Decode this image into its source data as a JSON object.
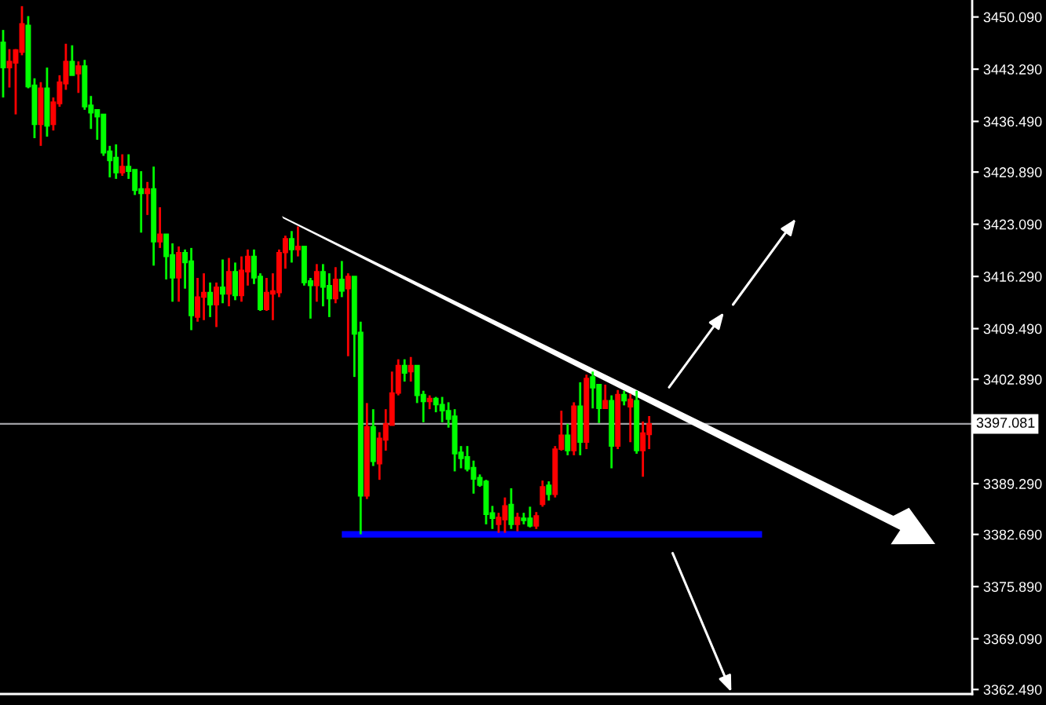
{
  "chart_data": {
    "type": "candlestick",
    "categories": [
      null,
      null,
      null,
      null,
      null,
      null,
      null,
      null,
      null,
      null,
      null,
      null,
      null,
      null,
      null,
      null,
      null,
      null,
      null,
      null,
      null,
      null,
      null,
      null,
      null,
      null,
      null,
      null,
      null,
      null,
      null,
      null,
      null,
      null,
      null,
      null,
      null,
      null,
      null,
      null,
      null,
      null,
      null,
      null,
      null,
      null,
      null,
      null,
      null,
      null,
      null,
      null,
      null,
      null,
      null,
      null,
      null,
      null,
      null,
      null,
      null,
      null,
      null,
      null,
      null,
      null,
      null,
      null,
      null,
      null,
      null,
      null,
      null,
      null,
      null,
      null,
      null,
      null,
      null,
      null,
      null,
      null,
      null,
      null,
      null,
      null,
      null,
      null,
      null,
      null,
      null,
      null,
      null,
      null,
      null,
      null,
      null,
      null,
      null,
      null,
      null,
      null,
      null,
      null,
      null,
      null,
      null,
      null,
      null,
      null,
      null,
      null,
      null,
      null,
      null,
      null,
      null,
      null,
      null,
      null,
      null,
      null,
      null,
      null,
      null,
      null,
      null,
      null,
      null,
      null,
      null,
      null,
      null,
      null,
      null,
      null,
      null,
      null,
      null,
      null,
      null,
      null,
      null,
      null,
      null,
      null,
      null,
      null,
      null,
      null,
      null,
      null,
      null,
      null,
      null
    ],
    "ohlc": [
      [
        3446.8,
        3448.4,
        3439.6,
        3443.5
      ],
      [
        3443.5,
        3445.9,
        3440.9,
        3444.3
      ],
      [
        3444.1,
        3445.9,
        3437.4,
        3445.8
      ],
      [
        3445.5,
        3451.5,
        3445.1,
        3449.2
      ],
      [
        3449.0,
        3450.2,
        3440.8,
        3441.0
      ],
      [
        3441.2,
        3442.1,
        3434.3,
        3436.1
      ],
      [
        3436.1,
        3441.6,
        3433.3,
        3440.8
      ],
      [
        3440.8,
        3443.5,
        3434.5,
        3435.9
      ],
      [
        3436.1,
        3439.6,
        3435.3,
        3439.0
      ],
      [
        3438.8,
        3442.5,
        3438.4,
        3441.6
      ],
      [
        3441.4,
        3446.6,
        3440.6,
        3444.3
      ],
      [
        3444.3,
        3446.4,
        3442.5,
        3442.5
      ],
      [
        3442.7,
        3444.3,
        3440.2,
        3443.7
      ],
      [
        3443.7,
        3444.5,
        3438.0,
        3438.4
      ],
      [
        3438.6,
        3439.8,
        3435.5,
        3437.6
      ],
      [
        3438.0,
        3438.0,
        3434.1,
        3437.1
      ],
      [
        3437.4,
        3437.4,
        3432.0,
        3432.4
      ],
      [
        3432.6,
        3433.3,
        3429.2,
        3431.4
      ],
      [
        3431.8,
        3433.5,
        3429.0,
        3429.8
      ],
      [
        3429.8,
        3432.2,
        3429.4,
        3430.6
      ],
      [
        3430.6,
        3432.2,
        3429.0,
        3430.0
      ],
      [
        3430.2,
        3430.2,
        3426.9,
        3427.5
      ],
      [
        3427.7,
        3430.0,
        3422.0,
        3427.1
      ],
      [
        3427.1,
        3428.6,
        3424.3,
        3427.7
      ],
      [
        3427.7,
        3430.6,
        3417.7,
        3420.8
      ],
      [
        3420.8,
        3425.3,
        3420.0,
        3421.8
      ],
      [
        3421.8,
        3421.8,
        3415.9,
        3418.9
      ],
      [
        3419.1,
        3420.6,
        3413.0,
        3416.1
      ],
      [
        3416.1,
        3420.2,
        3413.0,
        3419.4
      ],
      [
        3419.4,
        3419.8,
        3414.7,
        3418.1
      ],
      [
        3418.3,
        3420.0,
        3409.3,
        3411.2
      ],
      [
        3411.0,
        3416.1,
        3410.4,
        3413.6
      ],
      [
        3413.6,
        3416.7,
        3410.6,
        3414.2
      ],
      [
        3414.2,
        3415.5,
        3411.0,
        3412.6
      ],
      [
        3412.6,
        3415.5,
        3409.7,
        3414.9
      ],
      [
        3414.9,
        3418.5,
        3412.8,
        3414.0
      ],
      [
        3414.0,
        3418.7,
        3412.4,
        3416.9
      ],
      [
        3416.9,
        3418.1,
        3413.2,
        3413.8
      ],
      [
        3413.8,
        3418.9,
        3413.0,
        3417.1
      ],
      [
        3416.9,
        3419.8,
        3415.1,
        3418.9
      ],
      [
        3418.9,
        3419.8,
        3415.3,
        3416.1
      ],
      [
        3416.3,
        3416.7,
        3411.8,
        3412.0
      ],
      [
        3412.0,
        3416.1,
        3411.8,
        3414.2
      ],
      [
        3414.0,
        3416.7,
        3410.6,
        3414.4
      ],
      [
        3414.2,
        3419.8,
        3413.6,
        3419.4
      ],
      [
        3419.4,
        3421.6,
        3417.3,
        3421.2
      ],
      [
        3421.2,
        3422.2,
        3418.1,
        3419.8
      ],
      [
        3419.8,
        3422.8,
        3418.9,
        3420.2
      ],
      [
        3420.2,
        3420.2,
        3415.1,
        3415.5
      ],
      [
        3415.7,
        3416.1,
        3410.8,
        3415.1
      ],
      [
        3415.1,
        3417.9,
        3413.0,
        3416.9
      ],
      [
        3416.9,
        3417.9,
        3412.4,
        3414.9
      ],
      [
        3415.1,
        3416.7,
        3411.0,
        3413.4
      ],
      [
        3413.4,
        3417.5,
        3412.8,
        3415.9
      ],
      [
        3415.9,
        3418.3,
        3413.6,
        3414.4
      ],
      [
        3414.7,
        3416.7,
        3405.9,
        3416.3
      ],
      [
        3416.3,
        3416.3,
        3403.2,
        3408.8
      ],
      [
        3409.0,
        3410.4,
        3382.7,
        3387.7
      ],
      [
        3387.7,
        3399.8,
        3387.3,
        3396.7
      ],
      [
        3396.7,
        3399.0,
        3391.6,
        3392.2
      ],
      [
        3391.9,
        3396.0,
        3389.8,
        3395.2
      ],
      [
        3395.0,
        3399.0,
        3393.6,
        3397.1
      ],
      [
        3396.9,
        3403.9,
        3396.9,
        3401.1
      ],
      [
        3401.1,
        3405.5,
        3400.8,
        3404.7
      ],
      [
        3404.7,
        3405.5,
        3402.6,
        3403.7
      ],
      [
        3403.9,
        3405.8,
        3402.6,
        3404.7
      ],
      [
        3404.7,
        3404.7,
        3399.8,
        3400.8
      ],
      [
        3400.9,
        3401.4,
        3397.3,
        3400.0
      ],
      [
        3400.0,
        3400.8,
        3399.0,
        3400.4
      ],
      [
        3400.4,
        3400.6,
        3398.6,
        3399.6
      ],
      [
        3399.6,
        3400.6,
        3397.3,
        3398.8
      ],
      [
        3398.8,
        3399.9,
        3396.6,
        3397.7
      ],
      [
        3398.1,
        3399.0,
        3390.9,
        3393.2
      ],
      [
        3393.4,
        3394.2,
        3391.3,
        3392.6
      ],
      [
        3392.8,
        3394.2,
        3390.9,
        3391.2
      ],
      [
        3391.4,
        3392.3,
        3388.0,
        3389.9
      ],
      [
        3390.1,
        3390.5,
        3388.9,
        3389.1
      ],
      [
        3389.6,
        3389.8,
        3384.0,
        3385.3
      ],
      [
        3385.5,
        3386.4,
        3383.4,
        3384.8
      ],
      [
        3384.0,
        3385.5,
        3382.9,
        3384.9
      ],
      [
        3384.6,
        3387.5,
        3382.9,
        3386.4
      ],
      [
        3386.6,
        3388.7,
        3383.4,
        3384.0
      ],
      [
        3384.0,
        3385.5,
        3383.1,
        3384.9
      ],
      [
        3384.8,
        3385.5,
        3384.0,
        3384.5
      ],
      [
        3384.8,
        3386.3,
        3383.6,
        3383.8
      ],
      [
        3383.8,
        3385.6,
        3383.4,
        3385.1
      ],
      [
        3386.6,
        3389.7,
        3386.3,
        3388.9
      ],
      [
        3389.1,
        3389.6,
        3387.1,
        3387.9
      ],
      [
        3387.9,
        3394.2,
        3387.5,
        3393.8
      ],
      [
        3393.8,
        3398.8,
        3393.6,
        3395.6
      ],
      [
        3395.6,
        3397.1,
        3393.0,
        3393.6
      ],
      [
        3393.6,
        3399.9,
        3393.0,
        3399.4
      ],
      [
        3399.4,
        3402.5,
        3393.0,
        3394.7
      ],
      [
        3394.7,
        3403.5,
        3393.8,
        3403.0
      ],
      [
        3403.2,
        3403.9,
        3399.1,
        3401.8
      ],
      [
        3402.2,
        3402.2,
        3397.2,
        3399.1
      ],
      [
        3399.1,
        3402.2,
        3399.1,
        3400.1
      ],
      [
        3400.1,
        3400.8,
        3391.3,
        3394.2
      ],
      [
        3394.2,
        3401.5,
        3393.8,
        3400.9
      ],
      [
        3400.9,
        3401.4,
        3399.5,
        3400.1
      ],
      [
        3399.3,
        3401.0,
        3394.7,
        3400.3
      ],
      [
        3400.1,
        3401.4,
        3393.2,
        3393.6
      ],
      [
        3393.6,
        3397.4,
        3390.2,
        3395.9
      ],
      [
        3395.7,
        3398.1,
        3393.8,
        3397.1
      ],
      null,
      null,
      null,
      null,
      null,
      null,
      null,
      null,
      null,
      null,
      null,
      null,
      null,
      null,
      null,
      null,
      null,
      null,
      null,
      null,
      null,
      null,
      null,
      null,
      null,
      null,
      null,
      null,
      null,
      null,
      null,
      null,
      null,
      null,
      null,
      null,
      null,
      null,
      null,
      null,
      null,
      null,
      null,
      null,
      null,
      null,
      null,
      null,
      null,
      null,
      null
    ],
    "colors": [
      "#00ff00",
      "#ff0000",
      "#ff0000",
      "#ff0000",
      "#00ff00",
      "#00ff00",
      "#ff0000",
      "#00ff00",
      "#ff0000",
      "#ff0000",
      "#ff0000",
      "#00ff00",
      "#ff0000",
      "#00ff00",
      "#00ff00",
      "#00ff00",
      "#00ff00",
      "#00ff00",
      "#00ff00",
      "#ff0000",
      "#00ff00",
      "#00ff00",
      "#00ff00",
      "#ff0000",
      "#00ff00",
      "#ff0000",
      "#00ff00",
      "#00ff00",
      "#ff0000",
      "#00ff00",
      "#00ff00",
      "#ff0000",
      "#ff0000",
      "#00ff00",
      "#ff0000",
      "#00ff00",
      "#ff0000",
      "#00ff00",
      "#ff0000",
      "#ff0000",
      "#00ff00",
      "#00ff00",
      "#ff0000",
      "#ff0000",
      "#ff0000",
      "#ff0000",
      "#00ff00",
      "#ff0000",
      "#00ff00",
      "#00ff00",
      "#ff0000",
      "#00ff00",
      "#00ff00",
      "#ff0000",
      "#00ff00",
      "#ff0000",
      "#00ff00",
      "#00ff00",
      "#ff0000",
      "#00ff00",
      "#ff0000",
      "#ff0000",
      "#ff0000",
      "#ff0000",
      "#00ff00",
      "#ff0000",
      "#00ff00",
      "#00ff00",
      "#ff0000",
      "#00ff00",
      "#00ff00",
      "#00ff00",
      "#00ff00",
      "#00ff00",
      "#00ff00",
      "#00ff00",
      "#00ff00",
      "#00ff00",
      "#00ff00",
      "#ff0000",
      "#ff0000",
      "#00ff00",
      "#ff0000",
      "#00ff00",
      "#00ff00",
      "#ff0000",
      "#ff0000",
      "#00ff00",
      "#ff0000",
      "#ff0000",
      "#00ff00",
      "#ff0000",
      "#00ff00",
      "#ff0000",
      "#00ff00",
      "#00ff00",
      "#ff0000",
      "#00ff00",
      "#ff0000",
      "#00ff00",
      "#ff0000",
      "#00ff00",
      "#ff0000",
      "#ff0000",
      null,
      null,
      null,
      null,
      null,
      null,
      null,
      null,
      null,
      null,
      null,
      null,
      null,
      null,
      null,
      null,
      null,
      null,
      null,
      null,
      null,
      null,
      null,
      null,
      null,
      null,
      null,
      null,
      null,
      null,
      null,
      null,
      null,
      null,
      null,
      null,
      null,
      null,
      null,
      null,
      null,
      null,
      null,
      null,
      null,
      null,
      null,
      null,
      null,
      null,
      null
    ],
    "series": [
      {
        "type": "line",
        "color": "#0000ff",
        "values": [
          null,
          null,
          null,
          null,
          null,
          null,
          null,
          null,
          null,
          null,
          null,
          null,
          null,
          null,
          null,
          null,
          null,
          null,
          null,
          null,
          null,
          null,
          null,
          null,
          null,
          null,
          null,
          null,
          null,
          null,
          null,
          null,
          null,
          null,
          null,
          null,
          null,
          null,
          null,
          null,
          null,
          null,
          null,
          null,
          null,
          null,
          null,
          null,
          null,
          null,
          null,
          null,
          null,
          null,
          3382.7,
          null,
          null,
          null,
          null,
          null,
          null,
          null,
          null,
          null,
          null,
          null,
          null,
          null,
          null,
          null,
          null,
          null,
          null,
          null,
          null,
          null,
          null,
          null,
          null,
          null,
          null,
          null,
          null,
          null,
          null,
          null,
          null,
          null,
          null,
          null,
          null,
          null,
          null,
          null,
          null,
          null,
          null,
          null,
          null,
          null,
          null,
          null,
          null,
          null,
          null,
          null,
          null,
          null,
          null,
          null,
          null,
          null,
          null,
          null,
          null,
          null,
          null,
          null,
          null,
          null,
          null,
          3382.7,
          null,
          null,
          null,
          null,
          null,
          null,
          null,
          null,
          null,
          null,
          null,
          null,
          null,
          null,
          null,
          null,
          null,
          null,
          null,
          null,
          null,
          null,
          null,
          null,
          null,
          null,
          null,
          null,
          null,
          null,
          null,
          null,
          null
        ]
      }
    ],
    "ylim": [
      3361.9,
      3452.3
    ],
    "yticks": [
      {
        "value": 3450.09,
        "label": "3450.090"
      },
      {
        "value": 3443.29,
        "label": "3443.290"
      },
      {
        "value": 3436.49,
        "label": "3436.490"
      },
      {
        "value": 3429.89,
        "label": "3429.890"
      },
      {
        "value": 3423.09,
        "label": "3423.090"
      },
      {
        "value": 3416.29,
        "label": "3416.290"
      },
      {
        "value": 3409.49,
        "label": "3409.490"
      },
      {
        "value": 3402.89,
        "label": "3402.890"
      },
      {
        "value": 3389.29,
        "label": "3389.290"
      },
      {
        "value": 3382.69,
        "label": "3382.690"
      },
      {
        "value": 3375.89,
        "label": "3375.890"
      },
      {
        "value": 3369.09,
        "label": "3369.090"
      },
      {
        "value": 3362.49,
        "label": "3362.490"
      }
    ],
    "ref_lines": [
      {
        "axis": "y",
        "value": 3397.081,
        "label": "3397.081",
        "color": "#a0a0a4"
      }
    ]
  }
}
